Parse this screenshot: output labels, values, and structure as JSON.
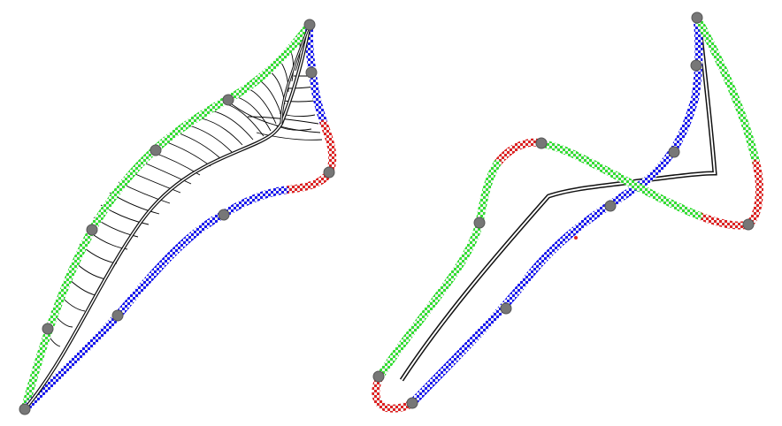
{
  "colors": {
    "green": "#33dd33",
    "blue": "#1a1aee",
    "red": "#dd2222",
    "checker_light": "#f4f4f4",
    "skeleton_outer": "#111111",
    "skeleton_inner": "#ffffff",
    "ribs": "#000000",
    "vertex": "#777777"
  },
  "figures": [
    {
      "name": "left-shape",
      "segments": [
        {
          "color": "green",
          "label": "green-curve"
        },
        {
          "color": "blue",
          "label": "blue-curve-upper"
        },
        {
          "color": "red",
          "label": "red-curve"
        },
        {
          "color": "blue",
          "label": "blue-curve-lower"
        }
      ],
      "has_ribs": true
    },
    {
      "name": "right-shape",
      "segments": [
        {
          "color": "blue",
          "label": "blue-curve-main"
        },
        {
          "color": "green",
          "label": "green-curve-right"
        },
        {
          "color": "red",
          "label": "red-curve-right"
        },
        {
          "color": "green",
          "label": "green-curve-loop"
        },
        {
          "color": "red",
          "label": "red-curve-top"
        },
        {
          "color": "green",
          "label": "green-curve-left"
        },
        {
          "color": "red",
          "label": "red-curve-bottom"
        }
      ],
      "has_ribs": false
    }
  ]
}
